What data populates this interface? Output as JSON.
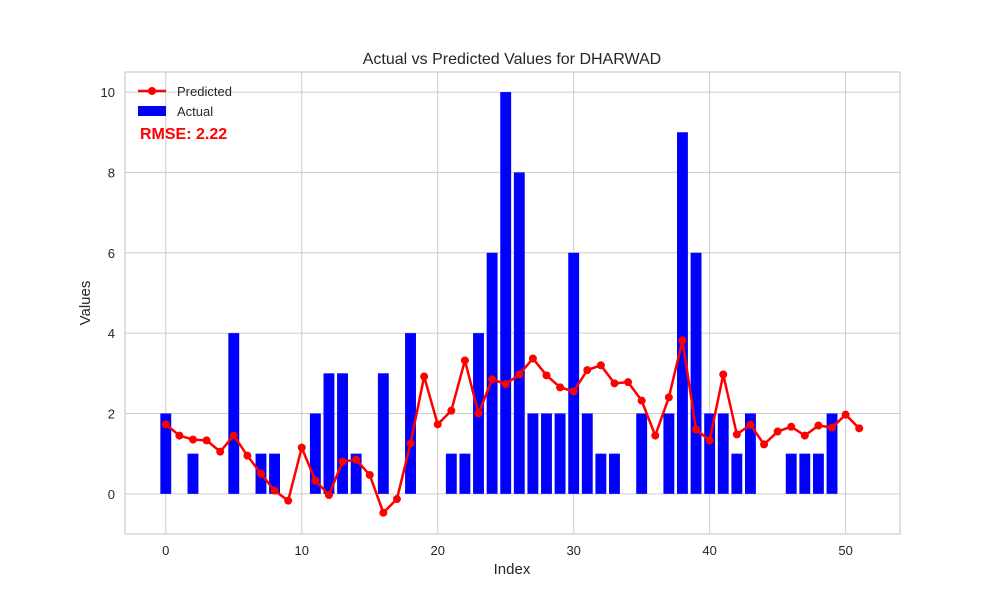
{
  "chart_data": {
    "type": "bar",
    "title": "Actual vs Predicted Values for DHARWAD",
    "xlabel": "Index",
    "ylabel": "Values",
    "xlim": [
      -3,
      54
    ],
    "ylim": [
      -1,
      10.5
    ],
    "xticks": [
      0,
      10,
      20,
      30,
      40,
      50
    ],
    "yticks": [
      0,
      2,
      4,
      6,
      8,
      10
    ],
    "grid": true,
    "legend_position": "top-left",
    "annotation": "RMSE: 2.22",
    "series": [
      {
        "name": "Actual",
        "kind": "bar",
        "color": "#0000ff",
        "x": [
          0,
          1,
          2,
          3,
          4,
          5,
          6,
          7,
          8,
          9,
          10,
          11,
          12,
          13,
          14,
          15,
          16,
          17,
          18,
          19,
          20,
          21,
          22,
          23,
          24,
          25,
          26,
          27,
          28,
          29,
          30,
          31,
          32,
          33,
          34,
          35,
          36,
          37,
          38,
          39,
          40,
          41,
          42,
          43,
          44,
          45,
          46,
          47,
          48,
          49
        ],
        "values": [
          2,
          0,
          1,
          0,
          0,
          4,
          0,
          1,
          1,
          0,
          0,
          2,
          3,
          3,
          1,
          0,
          3,
          0,
          4,
          0,
          0,
          1,
          1,
          4,
          6,
          10,
          8,
          2,
          2,
          2,
          6,
          2,
          1,
          1,
          0,
          2,
          0,
          2,
          9,
          6,
          2,
          2,
          1,
          2,
          0,
          0,
          1,
          1,
          1,
          2
        ]
      },
      {
        "name": "Predicted",
        "kind": "line",
        "color": "#ff0000",
        "x": [
          0,
          1,
          2,
          3,
          4,
          5,
          6,
          7,
          8,
          9,
          10,
          11,
          12,
          13,
          14,
          15,
          16,
          17,
          18,
          19,
          20,
          21,
          22,
          23,
          24,
          25,
          26,
          27,
          28,
          29,
          30,
          31,
          32,
          33,
          34,
          35,
          36,
          37,
          38,
          39,
          40,
          41,
          42,
          43,
          44,
          45,
          46,
          47,
          48,
          49,
          50,
          51
        ],
        "values": [
          1.73,
          1.45,
          1.35,
          1.33,
          1.05,
          1.45,
          0.95,
          0.5,
          0.08,
          -0.17,
          1.15,
          0.33,
          -0.03,
          0.8,
          0.85,
          0.47,
          -0.47,
          -0.13,
          1.25,
          2.92,
          1.73,
          2.07,
          3.32,
          2.0,
          2.85,
          2.73,
          2.97,
          3.37,
          2.95,
          2.65,
          2.55,
          3.08,
          3.2,
          2.75,
          2.78,
          2.32,
          1.45,
          2.4,
          3.82,
          1.6,
          1.33,
          2.97,
          1.48,
          1.72,
          1.23,
          1.55,
          1.67,
          1.45,
          1.7,
          1.65,
          1.97,
          1.63
        ]
      }
    ]
  }
}
